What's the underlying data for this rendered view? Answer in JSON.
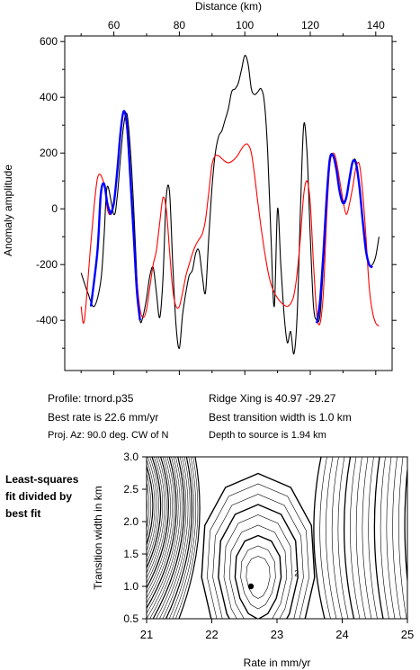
{
  "chart_data": [
    {
      "type": "line",
      "xlabel": "Distance (km)",
      "ylabel": "Anomaly amplitude",
      "xlim": [
        45,
        145
      ],
      "ylim": [
        -580,
        620
      ],
      "x_ticks": [
        60,
        80,
        100,
        120,
        140
      ],
      "y_ticks": [
        -400,
        -200,
        0,
        200,
        400,
        600
      ],
      "series": [
        {
          "color": "#000000",
          "role": "observed profile",
          "x": [
            50,
            52,
            54,
            56,
            57,
            58,
            60,
            61,
            62,
            63,
            64,
            65,
            66,
            67,
            68,
            69,
            70,
            71,
            72,
            73,
            74,
            75,
            76,
            77,
            78,
            79,
            80,
            81,
            82,
            83,
            84,
            85,
            86,
            87,
            88,
            89,
            90,
            91,
            92,
            93,
            94,
            95,
            96,
            97,
            98,
            99,
            100,
            101,
            102,
            103,
            104,
            105,
            106,
            107,
            108,
            109,
            110,
            111,
            112,
            113,
            114,
            115,
            116,
            117,
            118,
            119,
            120,
            121,
            122,
            123,
            124,
            125,
            126,
            127,
            128,
            129,
            130,
            131,
            132,
            133,
            134,
            135,
            136,
            137,
            138,
            139,
            140,
            141
          ],
          "y": [
            -230,
            -300,
            -350,
            -260,
            -100,
            80,
            -20,
            40,
            180,
            300,
            340,
            220,
            20,
            -240,
            -400,
            -380,
            -320,
            -240,
            -210,
            -300,
            -390,
            -250,
            40,
            60,
            -200,
            -420,
            -500,
            -380,
            -300,
            -240,
            -220,
            -160,
            -150,
            -240,
            -300,
            -100,
            80,
            200,
            260,
            280,
            320,
            360,
            420,
            430,
            450,
            500,
            550,
            520,
            430,
            410,
            420,
            430,
            380,
            200,
            -100,
            -350,
            0,
            -200,
            -380,
            -480,
            -440,
            -520,
            -380,
            0,
            300,
            200,
            -100,
            -350,
            -400,
            -380,
            -200,
            50,
            170,
            190,
            140,
            60,
            30,
            40,
            110,
            170,
            170,
            90,
            -40,
            -150,
            -200,
            -200,
            -170,
            -100
          ]
        },
        {
          "color": "#ff0000",
          "role": "model profile",
          "x": [
            50,
            51,
            53,
            55,
            57,
            58,
            59,
            60,
            61,
            62,
            63,
            64,
            65,
            66,
            67,
            68,
            69,
            70,
            71,
            72,
            73,
            74,
            75,
            76,
            77,
            78,
            79,
            80,
            81,
            82,
            83,
            84,
            85,
            86,
            87,
            88,
            89,
            90,
            91,
            92,
            93,
            94,
            95,
            96,
            97,
            98,
            99,
            100,
            101,
            102,
            103,
            104,
            105,
            106,
            107,
            108,
            109,
            110,
            111,
            112,
            113,
            114,
            115,
            116,
            117,
            118,
            119,
            120,
            121,
            122,
            123,
            124,
            125,
            126,
            127,
            128,
            129,
            130,
            131,
            132,
            133,
            134,
            135,
            136,
            137,
            138,
            139,
            140,
            141
          ],
          "y": [
            -350,
            -400,
            -120,
            110,
            90,
            0,
            -20,
            20,
            120,
            260,
            350,
            280,
            120,
            -80,
            -250,
            -360,
            -390,
            -360,
            -280,
            -200,
            -150,
            -50,
            40,
            0,
            -150,
            -290,
            -350,
            -350,
            -300,
            -240,
            -200,
            -160,
            -130,
            -110,
            -90,
            -40,
            60,
            160,
            190,
            190,
            180,
            170,
            165,
            170,
            180,
            195,
            215,
            230,
            230,
            200,
            120,
            20,
            -70,
            -150,
            -220,
            -270,
            -300,
            -320,
            -335,
            -345,
            -350,
            -340,
            -310,
            -230,
            -100,
            50,
            100,
            20,
            -200,
            -380,
            -410,
            -300,
            -30,
            160,
            200,
            170,
            100,
            30,
            -20,
            20,
            80,
            150,
            160,
            60,
            -100,
            -280,
            -370,
            -410,
            -420
          ]
        },
        {
          "color": "#0000ff",
          "role": "fitted segments",
          "segments": [
            {
              "x": [
                53,
                55,
                56,
                57,
                58,
                59
              ],
              "y": [
                -350,
                -150,
                50,
                90,
                20,
                -20
              ]
            },
            {
              "x": [
                59,
                60,
                61,
                62,
                63,
                64,
                65,
                66,
                67,
                68
              ],
              "y": [
                -20,
                20,
                130,
                270,
                350,
                300,
                120,
                -80,
                -290,
                -400
              ]
            },
            {
              "x": [
                122,
                123,
                124,
                125,
                126,
                127,
                128,
                129,
                130,
                131,
                132,
                133,
                134,
                135,
                136,
                137,
                138,
                139
              ],
              "y": [
                -410,
                -330,
                -160,
                40,
                180,
                190,
                140,
                60,
                20,
                40,
                110,
                170,
                160,
                80,
                -40,
                -150,
                -200,
                -210
              ]
            }
          ]
        }
      ]
    },
    {
      "type": "contour",
      "xlabel": "Rate in mm/yr",
      "ylabel": "Transition width in km",
      "xlim": [
        21,
        25
      ],
      "ylim": [
        0.5,
        3.0
      ],
      "x_ticks": [
        21,
        22,
        23,
        24,
        25
      ],
      "y_ticks": [
        0.5,
        1.0,
        1.5,
        2.0,
        2.5,
        3.0
      ],
      "x_tick_labels": [
        "21",
        "22",
        "23",
        "24",
        "25"
      ],
      "y_tick_labels": [
        "0.5",
        "1.0",
        "1.5",
        "2.0",
        "2.5",
        "3.0"
      ],
      "best_fit_point": {
        "x": 22.6,
        "y": 1.0
      },
      "contour_label": "2"
    }
  ],
  "info": {
    "profile": "Profile: trnord.p35",
    "best_rate": "Best rate is 22.6 mm/yr",
    "proj_az": "Proj. Az: 90.0 deg. CW of N",
    "ridge_xing": "Ridge Xing is 40.97 -29.27",
    "best_width": "Best transition width is 1.0 km",
    "depth": "Depth to source is   1.94 km"
  },
  "side_label": [
    "Least-squares",
    "fit divided by",
    "best fit"
  ]
}
